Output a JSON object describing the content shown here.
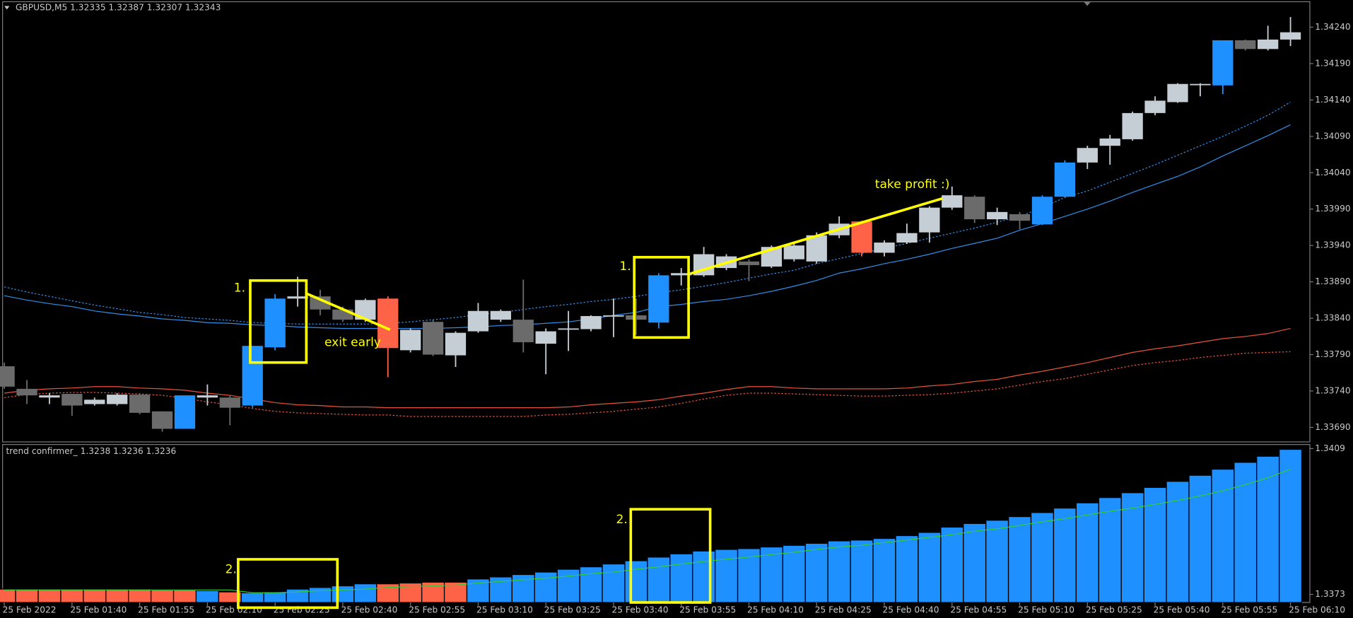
{
  "chart_data": [
    {
      "type": "candlestick",
      "title": "GBPUSD,M5  1.32335 1.32387 1.32307 1.32343",
      "categories": [
        "25 Feb 2022",
        null,
        null,
        "25 Feb 01:40",
        null,
        null,
        "25 Feb 01:55",
        null,
        null,
        "25 Feb 02:10",
        null,
        null,
        "25 Feb 02:25",
        null,
        null,
        "25 Feb 02:40",
        null,
        null,
        "25 Feb 02:55",
        null,
        null,
        "25 Feb 03:10",
        null,
        null,
        "25 Feb 03:25",
        null,
        null,
        "25 Feb 03:40",
        null,
        null,
        "25 Feb 03:55",
        null,
        null,
        "25 Feb 04:10",
        null,
        null,
        "25 Feb 04:25",
        null,
        null,
        "25 Feb 04:40",
        null,
        null,
        "25 Feb 04:55",
        null,
        null,
        "25 Feb 05:10",
        null,
        null,
        "25 Feb 05:25",
        null,
        null,
        "25 Feb 05:40",
        null,
        null,
        "25 Feb 05:55",
        null,
        null,
        "25 Feb 06:10"
      ],
      "open": [
        1.33774,
        1.33743,
        1.33731,
        1.33736,
        1.33722,
        1.33722,
        1.33735,
        1.33712,
        1.33688,
        1.33731,
        1.33731,
        1.3372,
        1.338,
        1.33867,
        1.3387,
        1.33852,
        1.33838,
        1.33867,
        1.33796,
        1.33835,
        1.33789,
        1.33822,
        1.33838,
        1.33838,
        1.33805,
        1.33825,
        1.33825,
        1.33843,
        1.33844,
        1.33834,
        1.33899,
        1.33899,
        1.33909,
        1.33918,
        1.33911,
        1.33921,
        1.33918,
        1.33954,
        1.33973,
        1.3393,
        1.33944,
        1.33958,
        1.33992,
        1.34007,
        1.33976,
        1.33983,
        1.33969,
        1.34007,
        1.34054,
        1.34077,
        1.34086,
        1.34122,
        1.34137,
        1.34161,
        1.3416,
        1.34222,
        1.3421,
        1.34223
      ],
      "high": [
        1.33779,
        1.33755,
        1.33737,
        1.33736,
        1.33731,
        1.33737,
        1.33737,
        1.33712,
        1.33734,
        1.33749,
        1.33734,
        1.33802,
        1.33873,
        1.33897,
        1.33879,
        1.33856,
        1.33867,
        1.3387,
        1.33826,
        1.33838,
        1.33822,
        1.33861,
        1.33852,
        1.33893,
        1.33826,
        1.3385,
        1.33844,
        1.33867,
        1.33867,
        1.33902,
        1.33909,
        1.33938,
        1.33928,
        1.33921,
        1.3394,
        1.33944,
        1.33958,
        1.3398,
        1.33974,
        1.33947,
        1.3397,
        1.33994,
        1.34021,
        1.34009,
        1.33992,
        1.33986,
        1.34009,
        1.34057,
        1.34077,
        1.34092,
        1.34124,
        1.34145,
        1.34163,
        1.34163,
        1.34222,
        1.34223,
        1.34242,
        1.34254
      ],
      "low": [
        1.33743,
        1.33722,
        1.33722,
        1.33706,
        1.3372,
        1.3372,
        1.33708,
        1.33684,
        1.33688,
        1.3372,
        1.33693,
        1.33717,
        1.33796,
        1.33856,
        1.33844,
        1.33835,
        1.33835,
        1.33759,
        1.33793,
        1.33788,
        1.33773,
        1.3382,
        1.33835,
        1.33793,
        1.33763,
        1.33795,
        1.33822,
        1.33814,
        1.33817,
        1.33826,
        1.33885,
        1.33897,
        1.33906,
        1.33891,
        1.33909,
        1.33918,
        1.33915,
        1.3395,
        1.33925,
        1.33925,
        1.33942,
        1.33944,
        1.33989,
        1.33971,
        1.33968,
        1.33962,
        1.33968,
        1.34006,
        1.34045,
        1.34051,
        1.34084,
        1.34119,
        1.34136,
        1.34145,
        1.34148,
        1.34208,
        1.34208,
        1.34214
      ],
      "close": [
        1.33746,
        1.33734,
        1.33734,
        1.3372,
        1.33728,
        1.33735,
        1.3371,
        1.33688,
        1.33734,
        1.33734,
        1.33717,
        1.33802,
        1.33867,
        1.3387,
        1.33852,
        1.33838,
        1.33865,
        1.33799,
        1.33824,
        1.3379,
        1.3382,
        1.3385,
        1.3385,
        1.33807,
        1.33822,
        1.33826,
        1.33843,
        1.33844,
        1.33838,
        1.33899,
        1.33902,
        1.33928,
        1.33925,
        1.33913,
        1.33938,
        1.3394,
        1.33954,
        1.3397,
        1.3393,
        1.33944,
        1.33957,
        1.33992,
        1.34009,
        1.33976,
        1.33986,
        1.33974,
        1.34007,
        1.34054,
        1.34074,
        1.34087,
        1.34122,
        1.34139,
        1.34162,
        1.34162,
        1.34222,
        1.3421,
        1.34223,
        1.34233
      ],
      "colors": [
        "#6b6b6b",
        "#6b6b6b",
        "#c5cdd5",
        "#6b6b6b",
        "#c5cdd5",
        "#c5cdd5",
        "#6b6b6b",
        "#6b6b6b",
        "#1e90ff",
        "#c5cdd5",
        "#6b6b6b",
        "#1e90ff",
        "#1e90ff",
        "#c5cdd5",
        "#6b6b6b",
        "#6b6b6b",
        "#c5cdd5",
        "#ff6347",
        "#c5cdd5",
        "#6b6b6b",
        "#c5cdd5",
        "#c5cdd5",
        "#c5cdd5",
        "#6b6b6b",
        "#c5cdd5",
        "#c5cdd5",
        "#c5cdd5",
        "#c5cdd5",
        "#6b6b6b",
        "#1e90ff",
        "#c5cdd5",
        "#c5cdd5",
        "#c5cdd5",
        "#6b6b6b",
        "#c5cdd5",
        "#c5cdd5",
        "#c5cdd5",
        "#c5cdd5",
        "#ff6347",
        "#c5cdd5",
        "#c5cdd5",
        "#c5cdd5",
        "#c5cdd5",
        "#6b6b6b",
        "#c5cdd5",
        "#6b6b6b",
        "#1e90ff",
        "#1e90ff",
        "#c5cdd5",
        "#c5cdd5",
        "#c5cdd5",
        "#c5cdd5",
        "#c5cdd5",
        "#c5cdd5",
        "#1e90ff",
        "#6b6b6b",
        "#c5cdd5",
        "#c5cdd5"
      ],
      "lines": [
        {
          "color": "#2f8fe8",
          "dashed": false,
          "values": [
            1.33871,
            1.33865,
            1.3386,
            1.33856,
            1.3385,
            1.33846,
            1.33843,
            1.33839,
            1.33837,
            1.33834,
            1.33833,
            1.33831,
            1.3383,
            1.33828,
            1.33827,
            1.33826,
            1.33826,
            1.33826,
            1.33826,
            1.33826,
            1.33827,
            1.33828,
            1.3383,
            1.33831,
            1.33833,
            1.33835,
            1.33839,
            1.33844,
            1.33848,
            1.33856,
            1.33859,
            1.33863,
            1.33866,
            1.33871,
            1.33877,
            1.33884,
            1.33892,
            1.33902,
            1.33908,
            1.33915,
            1.33921,
            1.33928,
            1.33936,
            1.33943,
            1.3395,
            1.33961,
            1.3397,
            1.3398,
            1.3399,
            1.34001,
            1.34013,
            1.34024,
            1.34035,
            1.34048,
            1.34063,
            1.34077,
            1.34091,
            1.34106
          ]
        },
        {
          "color": "#2f8fe8",
          "dashed": true,
          "values": [
            1.33883,
            1.33876,
            1.3387,
            1.33864,
            1.33858,
            1.33853,
            1.33848,
            1.33845,
            1.33841,
            1.33839,
            1.33837,
            1.33834,
            1.33833,
            1.33832,
            1.33832,
            1.33832,
            1.33832,
            1.33833,
            1.33835,
            1.33838,
            1.33841,
            1.33845,
            1.33848,
            1.33852,
            1.33856,
            1.33859,
            1.33863,
            1.33866,
            1.3387,
            1.33875,
            1.33879,
            1.33884,
            1.33889,
            1.33895,
            1.33901,
            1.33906,
            1.33915,
            1.33922,
            1.33929,
            1.33936,
            1.33943,
            1.3395,
            1.33957,
            1.33964,
            1.33972,
            1.3398,
            1.33992,
            1.34006,
            1.34015,
            1.34027,
            1.34039,
            1.34051,
            1.34064,
            1.34077,
            1.3409,
            1.34104,
            1.34119,
            1.34137
          ]
        },
        {
          "color": "#e8533a",
          "dashed": false,
          "values": [
            1.33737,
            1.33741,
            1.33743,
            1.33744,
            1.33746,
            1.33746,
            1.33744,
            1.33743,
            1.33741,
            1.33737,
            1.33734,
            1.33729,
            1.33724,
            1.33721,
            1.3372,
            1.33718,
            1.33718,
            1.33717,
            1.33717,
            1.33717,
            1.33717,
            1.33717,
            1.33717,
            1.33717,
            1.33717,
            1.33718,
            1.33721,
            1.33723,
            1.33725,
            1.33728,
            1.33733,
            1.33737,
            1.33742,
            1.33746,
            1.33746,
            1.33744,
            1.33743,
            1.33743,
            1.33743,
            1.33743,
            1.33744,
            1.33747,
            1.33749,
            1.33753,
            1.33756,
            1.33762,
            1.33767,
            1.33773,
            1.33779,
            1.33786,
            1.33793,
            1.33798,
            1.33802,
            1.33807,
            1.33812,
            1.33815,
            1.33819,
            1.33826
          ]
        },
        {
          "color": "#e8533a",
          "dashed": true,
          "values": [
            1.33731,
            1.33735,
            1.33737,
            1.33738,
            1.33738,
            1.33737,
            1.33736,
            1.33734,
            1.3373,
            1.33725,
            1.33721,
            1.33716,
            1.33712,
            1.3371,
            1.33709,
            1.33708,
            1.33707,
            1.33707,
            1.33705,
            1.33705,
            1.33705,
            1.33705,
            1.33705,
            1.33705,
            1.33707,
            1.33708,
            1.3371,
            1.33712,
            1.33715,
            1.33718,
            1.33723,
            1.33729,
            1.33734,
            1.33737,
            1.33737,
            1.33736,
            1.33735,
            1.33734,
            1.33733,
            1.33733,
            1.33734,
            1.33735,
            1.33737,
            1.3374,
            1.33743,
            1.33748,
            1.33753,
            1.33757,
            1.33763,
            1.33769,
            1.33775,
            1.33779,
            1.33782,
            1.33786,
            1.33789,
            1.33792,
            1.33793,
            1.33794
          ]
        }
      ],
      "ylim": [
        1.3367,
        1.34275
      ],
      "yticks": [
        {
          "value": 1.3424,
          "label": "1.34240"
        },
        {
          "value": 1.3419,
          "label": "1.34190"
        },
        {
          "value": 1.3414,
          "label": "1.34140"
        },
        {
          "value": 1.3409,
          "label": "1.34090"
        },
        {
          "value": 1.3404,
          "label": "1.34040"
        },
        {
          "value": 1.3399,
          "label": "1.33990"
        },
        {
          "value": 1.3394,
          "label": "1.33940"
        },
        {
          "value": 1.3389,
          "label": "1.33890"
        },
        {
          "value": 1.3384,
          "label": "1.33840"
        },
        {
          "value": 1.3379,
          "label": "1.33790"
        },
        {
          "value": 1.3374,
          "label": "1.33740"
        },
        {
          "value": 1.3369,
          "label": "1.33690"
        }
      ],
      "annotations": [
        "1.",
        "exit early",
        "1.",
        "take profit :)"
      ]
    },
    {
      "type": "bar",
      "title": "trend confirmer_ 1.3238 1.3236 1.3236",
      "values": [
        1.33743,
        1.33743,
        1.33743,
        1.33743,
        1.33743,
        1.33743,
        1.33743,
        1.33741,
        1.33741,
        1.33739,
        1.33736,
        1.33734,
        1.33736,
        1.33743,
        1.33747,
        1.33751,
        1.33756,
        1.33756,
        1.33758,
        1.3376,
        1.3376,
        1.33768,
        1.33773,
        1.33779,
        1.33785,
        1.33792,
        1.33798,
        1.33805,
        1.33813,
        1.33822,
        1.3383,
        1.33837,
        1.33841,
        1.33843,
        1.33847,
        1.33851,
        1.33856,
        1.33862,
        1.33864,
        1.33868,
        1.33875,
        1.33883,
        1.33896,
        1.33905,
        1.33913,
        1.33922,
        1.33932,
        1.33943,
        1.33956,
        1.33969,
        1.33981,
        1.33994,
        1.34009,
        1.34024,
        1.34039,
        1.34056,
        1.34071,
        1.34088
      ],
      "colors": [
        "#ff6347",
        "#ff6347",
        "#ff6347",
        "#ff6347",
        "#ff6347",
        "#ff6347",
        "#ff6347",
        "#ff6347",
        "#ff6347",
        "#1e90ff",
        "#ff6347",
        "#1e90ff",
        "#1e90ff",
        "#1e90ff",
        "#1e90ff",
        "#1e90ff",
        "#1e90ff",
        "#ff6347",
        "#ff6347",
        "#ff6347",
        "#ff6347",
        "#1e90ff",
        "#1e90ff",
        "#1e90ff",
        "#1e90ff",
        "#1e90ff",
        "#1e90ff",
        "#1e90ff",
        "#1e90ff",
        "#1e90ff",
        "#1e90ff",
        "#1e90ff",
        "#1e90ff",
        "#1e90ff",
        "#1e90ff",
        "#1e90ff",
        "#1e90ff",
        "#1e90ff",
        "#1e90ff",
        "#1e90ff",
        "#1e90ff",
        "#1e90ff",
        "#1e90ff",
        "#1e90ff",
        "#1e90ff",
        "#1e90ff",
        "#1e90ff",
        "#1e90ff",
        "#1e90ff",
        "#1e90ff",
        "#1e90ff",
        "#1e90ff",
        "#1e90ff",
        "#1e90ff",
        "#1e90ff",
        "#1e90ff",
        "#1e90ff",
        "#1e90ff"
      ],
      "lines": [
        {
          "color": "#32cd32",
          "dashed": false,
          "values": [
            1.33741,
            1.33741,
            1.33741,
            1.33741,
            1.33741,
            1.33741,
            1.33741,
            1.33741,
            1.33741,
            1.33741,
            1.33741,
            1.33734,
            1.33734,
            1.33736,
            1.33739,
            1.33741,
            1.33743,
            1.33747,
            1.33749,
            1.33751,
            1.33753,
            1.33758,
            1.33762,
            1.33766,
            1.3377,
            1.33775,
            1.33781,
            1.33785,
            1.33792,
            1.33798,
            1.33805,
            1.33811,
            1.33817,
            1.33822,
            1.33828,
            1.33834,
            1.33841,
            1.33847,
            1.33851,
            1.33858,
            1.33864,
            1.33871,
            1.33877,
            1.33886,
            1.33892,
            1.339,
            1.33909,
            1.33917,
            1.33926,
            1.33935,
            1.33943,
            1.33952,
            1.33962,
            1.33973,
            1.33986,
            1.34001,
            1.34018,
            1.34039
          ]
        }
      ],
      "ylim": [
        1.3371,
        1.341
      ],
      "yticks": [
        1.3409,
        1.3373
      ],
      "annotations": [
        "2.",
        "2."
      ]
    }
  ]
}
